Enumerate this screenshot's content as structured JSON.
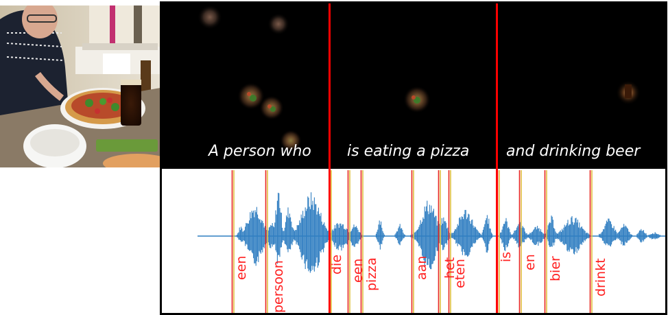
{
  "captions": [
    {
      "text": "A person who"
    },
    {
      "text": "is eating a pizza"
    },
    {
      "text": "and drinking beer"
    }
  ],
  "words": [
    {
      "text": "een"
    },
    {
      "text": "persoon"
    },
    {
      "text": "die"
    },
    {
      "text": "een"
    },
    {
      "text": "pizza"
    },
    {
      "text": "aan"
    },
    {
      "text": "het"
    },
    {
      "text": "eten"
    },
    {
      "text": "is"
    },
    {
      "text": "en"
    },
    {
      "text": "bier"
    },
    {
      "text": "drinkt"
    }
  ],
  "colors": {
    "segment_boundary": "#ff0000",
    "word_boundary_red": "#e8251f",
    "word_boundary_yellow": "#e0c040",
    "waveform": "#2f7ec1",
    "word_label": "#ff2020",
    "caption": "#ffffff"
  },
  "icons": {
    "photo": "restaurant-photo-man-eating-pizza-with-beer"
  }
}
